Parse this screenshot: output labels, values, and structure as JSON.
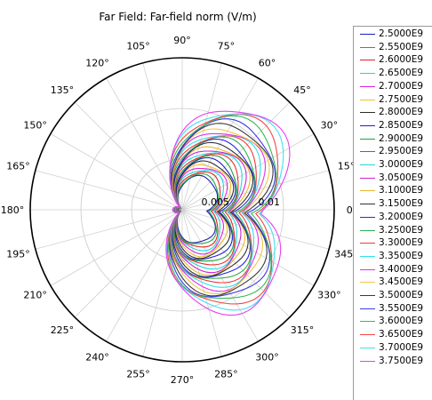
{
  "chart_data": {
    "type": "polar-line",
    "title": "Far Field: Far-field norm (V/m)",
    "angular_ticks": [
      "0°",
      "15°",
      "30°",
      "45°",
      "60°",
      "75°",
      "90°",
      "105°",
      "120°",
      "135°",
      "150°",
      "165°",
      "180°",
      "195°",
      "210°",
      "225°",
      "240°",
      "255°",
      "270°",
      "285°",
      "300°",
      "315°",
      "330°",
      "345°"
    ],
    "radial_ticks": [
      0.005,
      0.01
    ],
    "radial_tick_labels": [
      "0.005",
      "0.01"
    ],
    "rmax": 0.015,
    "legend_placement": "right",
    "series": [
      {
        "name": "2.5000E9",
        "color": "#1f1fb4",
        "peak": 0.0039
      },
      {
        "name": "2.5500E9",
        "color": "#22a645",
        "peak": 0.0041
      },
      {
        "name": "2.6000E9",
        "color": "#e32020",
        "peak": 0.0044
      },
      {
        "name": "2.6500E9",
        "color": "#19d9d9",
        "peak": 0.0047
      },
      {
        "name": "2.7000E9",
        "color": "#e020e0",
        "peak": 0.005
      },
      {
        "name": "2.7500E9",
        "color": "#f0c030",
        "peak": 0.0053
      },
      {
        "name": "2.8000E9",
        "color": "#2c2c2c",
        "peak": 0.0056
      },
      {
        "name": "2.8500E9",
        "color": "#2020d0",
        "peak": 0.0059
      },
      {
        "name": "2.9000E9",
        "color": "#20a040",
        "peak": 0.0062
      },
      {
        "name": "2.9500E9",
        "color": "#e83030",
        "peak": 0.0065
      },
      {
        "name": "3.0000E9",
        "color": "#20d8e0",
        "peak": 0.0068
      },
      {
        "name": "3.0500E9",
        "color": "#d020d0",
        "peak": 0.0071
      },
      {
        "name": "3.1000E9",
        "color": "#e8b830",
        "peak": 0.0074
      },
      {
        "name": "3.1500E9",
        "color": "#333333",
        "peak": 0.0077
      },
      {
        "name": "3.2000E9",
        "color": "#2a2ae0",
        "peak": 0.008
      },
      {
        "name": "3.2500E9",
        "color": "#30b050",
        "peak": 0.0083
      },
      {
        "name": "3.3000E9",
        "color": "#f03a3a",
        "peak": 0.0086
      },
      {
        "name": "3.3500E9",
        "color": "#30e0e8",
        "peak": 0.0089
      },
      {
        "name": "3.4000E9",
        "color": "#e030e8",
        "peak": 0.0092
      },
      {
        "name": "3.4500E9",
        "color": "#f0c848",
        "peak": 0.0095
      },
      {
        "name": "3.5000E9",
        "color": "#3a3a3a",
        "peak": 0.0099
      },
      {
        "name": "3.5500E9",
        "color": "#3a3ae8",
        "peak": 0.0103
      },
      {
        "name": "3.6000E9",
        "color": "#38b858",
        "peak": 0.0107
      },
      {
        "name": "3.6500E9",
        "color": "#f04848",
        "peak": 0.0111
      },
      {
        "name": "3.7000E9",
        "color": "#40e0f0",
        "peak": 0.0115
      },
      {
        "name": "3.7500E9",
        "color": "#e840f0",
        "peak": 0.0119
      }
    ]
  }
}
